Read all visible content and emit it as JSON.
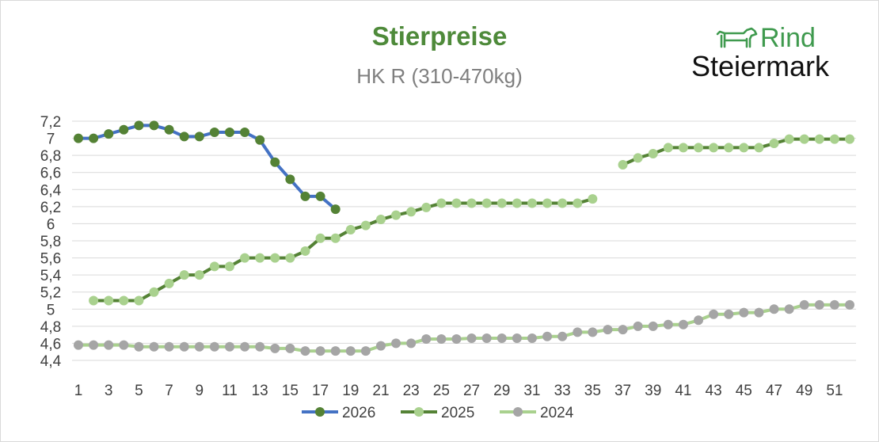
{
  "logo": {
    "line1": "Rind",
    "line2": "Steiermark",
    "icon": "cow-icon",
    "colors": {
      "rind": "#3f9a4e",
      "text": "#111111"
    }
  },
  "chart_data": {
    "type": "line",
    "title": "Stierpreise",
    "subtitle": "HK R (310-470kg)",
    "xlabel": "",
    "ylabel": "",
    "xlim": [
      1,
      52
    ],
    "ylim": [
      4.4,
      7.2
    ],
    "y_ticks": [
      "4,4",
      "4,6",
      "4,8",
      "5",
      "5,2",
      "5,4",
      "5,6",
      "5,8",
      "6",
      "6,2",
      "6,4",
      "6,6",
      "6,8",
      "7",
      "7,2"
    ],
    "x_ticks": [
      1,
      3,
      5,
      7,
      9,
      11,
      13,
      15,
      17,
      19,
      21,
      23,
      25,
      27,
      29,
      31,
      33,
      35,
      37,
      39,
      41,
      43,
      45,
      47,
      49,
      51
    ],
    "grid": true,
    "legend_position": "bottom",
    "series": [
      {
        "name": "2026",
        "line_color": "#4472c4",
        "marker_color": "#548235",
        "points": [
          [
            1,
            7.0
          ],
          [
            2,
            7.0
          ],
          [
            3,
            7.05
          ],
          [
            4,
            7.1
          ],
          [
            5,
            7.15
          ],
          [
            6,
            7.15
          ],
          [
            7,
            7.1
          ],
          [
            8,
            7.02
          ],
          [
            9,
            7.02
          ],
          [
            10,
            7.07
          ],
          [
            11,
            7.07
          ],
          [
            12,
            7.07
          ],
          [
            13,
            6.98
          ],
          [
            14,
            6.72
          ],
          [
            15,
            6.52
          ],
          [
            16,
            6.32
          ],
          [
            17,
            6.32
          ],
          [
            18,
            6.17
          ]
        ]
      },
      {
        "name": "2025",
        "line_color": "#548235",
        "marker_color": "#a9d18e",
        "points": [
          [
            2,
            5.1
          ],
          [
            3,
            5.1
          ],
          [
            4,
            5.1
          ],
          [
            5,
            5.1
          ],
          [
            6,
            5.2
          ],
          [
            7,
            5.3
          ],
          [
            8,
            5.4
          ],
          [
            9,
            5.4
          ],
          [
            10,
            5.5
          ],
          [
            11,
            5.5
          ],
          [
            12,
            5.6
          ],
          [
            13,
            5.6
          ],
          [
            14,
            5.6
          ],
          [
            15,
            5.6
          ],
          [
            16,
            5.68
          ],
          [
            17,
            5.83
          ],
          [
            18,
            5.83
          ],
          [
            19,
            5.93
          ],
          [
            20,
            5.98
          ],
          [
            21,
            6.05
          ],
          [
            22,
            6.1
          ],
          [
            23,
            6.14
          ],
          [
            24,
            6.19
          ],
          [
            25,
            6.24
          ],
          [
            26,
            6.24
          ],
          [
            27,
            6.24
          ],
          [
            28,
            6.24
          ],
          [
            29,
            6.24
          ],
          [
            30,
            6.24
          ],
          [
            31,
            6.24
          ],
          [
            32,
            6.24
          ],
          [
            33,
            6.24
          ],
          [
            34,
            6.24
          ],
          [
            35,
            6.29
          ],
          [
            37,
            6.69
          ],
          [
            38,
            6.77
          ],
          [
            39,
            6.82
          ],
          [
            40,
            6.89
          ],
          [
            41,
            6.89
          ],
          [
            42,
            6.89
          ],
          [
            43,
            6.89
          ],
          [
            44,
            6.89
          ],
          [
            45,
            6.89
          ],
          [
            46,
            6.89
          ],
          [
            47,
            6.94
          ],
          [
            48,
            6.99
          ],
          [
            49,
            6.99
          ],
          [
            50,
            6.99
          ],
          [
            51,
            6.99
          ],
          [
            52,
            6.99
          ]
        ]
      },
      {
        "name": "2024",
        "line_color": "#a9d18e",
        "marker_color": "#a5a5a5",
        "points": [
          [
            1,
            4.58
          ],
          [
            2,
            4.58
          ],
          [
            3,
            4.58
          ],
          [
            4,
            4.58
          ],
          [
            5,
            4.56
          ],
          [
            6,
            4.56
          ],
          [
            7,
            4.56
          ],
          [
            8,
            4.56
          ],
          [
            9,
            4.56
          ],
          [
            10,
            4.56
          ],
          [
            11,
            4.56
          ],
          [
            12,
            4.56
          ],
          [
            13,
            4.56
          ],
          [
            14,
            4.54
          ],
          [
            15,
            4.54
          ],
          [
            16,
            4.51
          ],
          [
            17,
            4.51
          ],
          [
            18,
            4.51
          ],
          [
            19,
            4.51
          ],
          [
            20,
            4.51
          ],
          [
            21,
            4.57
          ],
          [
            22,
            4.6
          ],
          [
            23,
            4.6
          ],
          [
            24,
            4.65
          ],
          [
            25,
            4.65
          ],
          [
            26,
            4.65
          ],
          [
            27,
            4.66
          ],
          [
            28,
            4.66
          ],
          [
            29,
            4.66
          ],
          [
            30,
            4.66
          ],
          [
            31,
            4.66
          ],
          [
            32,
            4.68
          ],
          [
            33,
            4.68
          ],
          [
            34,
            4.73
          ],
          [
            35,
            4.73
          ],
          [
            36,
            4.76
          ],
          [
            37,
            4.76
          ],
          [
            38,
            4.8
          ],
          [
            39,
            4.8
          ],
          [
            40,
            4.82
          ],
          [
            41,
            4.82
          ],
          [
            42,
            4.87
          ],
          [
            43,
            4.94
          ],
          [
            44,
            4.94
          ],
          [
            45,
            4.96
          ],
          [
            46,
            4.96
          ],
          [
            47,
            5.0
          ],
          [
            48,
            5.0
          ],
          [
            49,
            5.05
          ],
          [
            50,
            5.05
          ],
          [
            51,
            5.05
          ],
          [
            52,
            5.05
          ]
        ]
      }
    ]
  }
}
